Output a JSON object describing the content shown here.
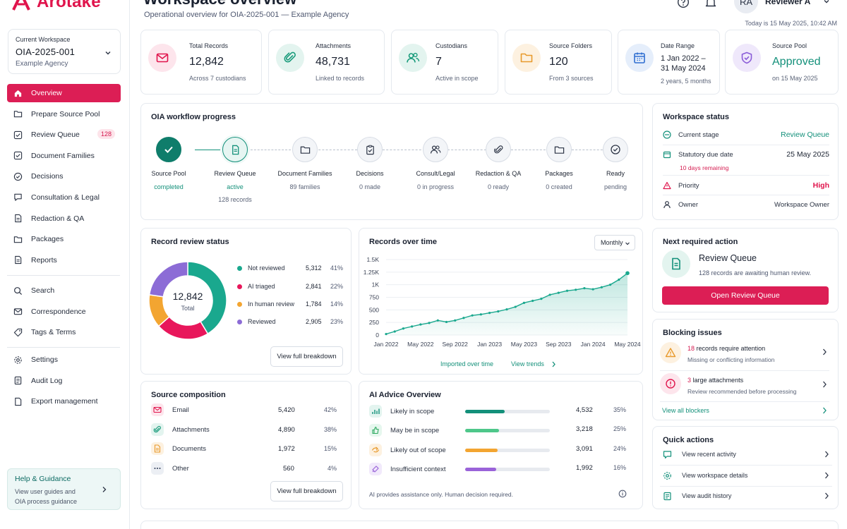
{
  "app": {
    "name": "Arotake"
  },
  "workspace": {
    "label": "Current Workspace",
    "id": "OIA-2025-001",
    "agency": "Example Agency"
  },
  "nav": {
    "main": [
      {
        "label": "Overview",
        "icon": "home-icon",
        "active": true
      },
      {
        "label": "Prepare Source Pool",
        "icon": "folder-icon"
      },
      {
        "label": "Review Queue",
        "icon": "checkbox-icon",
        "badge": "128"
      },
      {
        "label": "Document Families",
        "icon": "checkbox-icon"
      },
      {
        "label": "Decisions",
        "icon": "check-circle-icon"
      },
      {
        "label": "Consultation & Legal",
        "icon": "chat-icon"
      },
      {
        "label": "Redaction & QA",
        "icon": "document-icon"
      },
      {
        "label": "Packages",
        "icon": "folder-icon"
      },
      {
        "label": "Reports",
        "icon": "document-icon"
      }
    ],
    "secondary": [
      {
        "label": "Search",
        "icon": "search-icon"
      },
      {
        "label": "Correspondence",
        "icon": "mail-icon"
      },
      {
        "label": "Tags & Terms",
        "icon": "tag-icon"
      }
    ],
    "tertiary": [
      {
        "label": "Settings",
        "icon": "gear-icon"
      },
      {
        "label": "Audit Log",
        "icon": "log-icon"
      },
      {
        "label": "Export management",
        "icon": "document-icon"
      }
    ]
  },
  "help": {
    "title": "Help & Guidance",
    "line1": "View user guides and",
    "line2": "OIA process guidance"
  },
  "header": {
    "title": "Workspace overview",
    "subtitle": "Operational overview for OIA-2025-001 — Example Agency",
    "user_initials": "RA",
    "user_name": "Reviewer A",
    "today": "Today is 15 May 2025, 10:42 AM"
  },
  "stats": [
    {
      "label": "Total Records",
      "value": "12,842",
      "sub": "Across 7 custodians",
      "icon": "mail-icon",
      "color": "#e0144c"
    },
    {
      "label": "Attachments",
      "value": "48,731",
      "sub": "Linked to records",
      "icon": "paperclip-icon",
      "color": "#1a9c7c"
    },
    {
      "label": "Custodians",
      "value": "7",
      "sub": "Active in scope",
      "icon": "users-icon",
      "color": "#1a9c7c"
    },
    {
      "label": "Source Folders",
      "value": "120",
      "sub": "From 3 sources",
      "icon": "folder-icon",
      "color": "#e89a2c"
    },
    {
      "label": "Date Range",
      "value": "1 Jan 2022 –",
      "value2": "31 May 2024",
      "sub": "2 years, 5 months",
      "icon": "calendar-icon",
      "color": "#2f6fd1"
    },
    {
      "label": "Source Pool",
      "value": "Approved",
      "sub": "on 15 May 2025",
      "icon": "shield-icon",
      "color": "#8a5cd8"
    }
  ],
  "workflow": {
    "title": "OIA workflow progress",
    "steps": [
      {
        "name": "Source Pool",
        "state": "completed",
        "extra": ""
      },
      {
        "name": "Review Queue",
        "state": "active",
        "extra": "128 records"
      },
      {
        "name": "Document Families",
        "state": "89 families",
        "extra": ""
      },
      {
        "name": "Decisions",
        "state": "0 made",
        "extra": ""
      },
      {
        "name": "Consult/Legal",
        "state": "0 in progress",
        "extra": ""
      },
      {
        "name": "Redaction & QA",
        "state": "0 ready",
        "extra": ""
      },
      {
        "name": "Packages",
        "state": "0 created",
        "extra": ""
      },
      {
        "name": "Ready",
        "state": "pending",
        "extra": ""
      }
    ]
  },
  "workspace_status": {
    "title": "Workspace status",
    "current_stage_label": "Current stage",
    "current_stage_value": "Review Queue",
    "due_label": "Statutory due date",
    "due_value": "25 May 2025",
    "due_note": "10 days remaining",
    "priority_label": "Priority",
    "priority_value": "High",
    "owner_label": "Owner",
    "owner_value": "Workspace Owner"
  },
  "review_status": {
    "title": "Record review status",
    "total": "12,842",
    "total_label": "Total",
    "button": "View full breakdown"
  },
  "time_chart": {
    "title": "Records over time",
    "dropdown": "Monthly",
    "link_left": "Imported over time",
    "link_right": "View trends"
  },
  "chart_data": [
    {
      "type": "pie",
      "title": "Record review status",
      "categories": [
        "Not reviewed",
        "AI triaged",
        "In human review",
        "Reviewed"
      ],
      "values": [
        5312,
        2841,
        1784,
        2905
      ],
      "value_labels": [
        "5,312",
        "2,841",
        "1,784",
        "2,905"
      ],
      "percents": [
        "41%",
        "22%",
        "14%",
        "23%"
      ],
      "colors": [
        "#1aa88e",
        "#e8175b",
        "#f3a531",
        "#8c6cd6"
      ]
    },
    {
      "type": "area",
      "title": "Records over time",
      "x": [
        "Jan 2022",
        "Feb 2022",
        "Mar 2022",
        "Apr 2022",
        "May 2022",
        "Jun 2022",
        "Jul 2022",
        "Aug 2022",
        "Sep 2022",
        "Oct 2022",
        "Nov 2022",
        "Dec 2022",
        "Jan 2023",
        "Feb 2023",
        "Mar 2023",
        "Apr 2023",
        "May 2023",
        "Jun 2023",
        "Jul 2023",
        "Aug 2023",
        "Sep 2023",
        "Oct 2023",
        "Nov 2023",
        "Dec 2023",
        "Jan 2024",
        "Feb 2024",
        "Mar 2024",
        "Apr 2024",
        "May 2024"
      ],
      "values": [
        20,
        70,
        130,
        170,
        210,
        240,
        290,
        260,
        290,
        340,
        390,
        410,
        440,
        470,
        510,
        560,
        640,
        680,
        720,
        800,
        840,
        880,
        900,
        930,
        910,
        950,
        1000,
        1100,
        1230
      ],
      "x_tick_labels": [
        "Jan 2022",
        "May 2022",
        "Sep 2022",
        "Jan 2023",
        "May 2023",
        "Sep 2023",
        "Jan 2024",
        "May 2024"
      ],
      "y_ticks": [
        0,
        250,
        500,
        750,
        1000,
        1250,
        1500
      ],
      "y_tick_labels": [
        "0",
        "250",
        "500",
        "750",
        "1K",
        "1.25K",
        "1.5K"
      ],
      "ylim": [
        0,
        1500
      ],
      "grid": true,
      "color": "#1aa88e"
    }
  ],
  "next_action": {
    "title": "Next required action",
    "heading": "Review Queue",
    "text": "128 records are awaiting human review.",
    "button": "Open Review Queue"
  },
  "blocking": {
    "title": "Blocking issues",
    "items": [
      {
        "count": "18",
        "text": "records require attention",
        "sub": "Missing or conflicting information"
      },
      {
        "count": "3",
        "text": "large attachments",
        "sub": "Review recommended before processing"
      }
    ],
    "link": "View all blockers"
  },
  "source_composition": {
    "title": "Source composition",
    "rows": [
      {
        "label": "Email",
        "value": "5,420",
        "pct": "42%",
        "icon": "mail-icon",
        "color": "#e0144c"
      },
      {
        "label": "Attachments",
        "value": "4,890",
        "pct": "38%",
        "icon": "paperclip-icon",
        "color": "#1a9c7c"
      },
      {
        "label": "Documents",
        "value": "1,972",
        "pct": "15%",
        "icon": "document-icon",
        "color": "#e89a2c"
      },
      {
        "label": "Other",
        "value": "560",
        "pct": "4%",
        "icon": "more-icon",
        "color": "#2f3d55"
      }
    ],
    "button": "View full breakdown"
  },
  "ai_advice": {
    "title": "AI Advice Overview",
    "rows": [
      {
        "label": "Likely in scope",
        "value": "4,532",
        "pct": "35%",
        "fraction": 0.47,
        "color": "#13907a",
        "icon": "scope-icon"
      },
      {
        "label": "May be in scope",
        "value": "3,218",
        "pct": "25%",
        "fraction": 0.4,
        "color": "#4ec78a",
        "icon": "thumb-icon"
      },
      {
        "label": "Likely out of scope",
        "value": "3,091",
        "pct": "24%",
        "fraction": 0.38,
        "color": "#f3a531",
        "icon": "out-scope-icon"
      },
      {
        "label": "Insufficient context",
        "value": "1,992",
        "pct": "16%",
        "fraction": 0.37,
        "color": "#9a63d9",
        "icon": "context-icon"
      }
    ],
    "footer": "AI provides assistance only. Human decision required."
  },
  "quick_actions": {
    "title": "Quick actions",
    "items": [
      "View recent activity",
      "View workspace details",
      "View audit history"
    ]
  }
}
